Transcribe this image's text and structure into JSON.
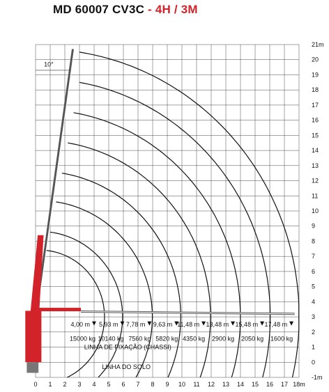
{
  "title": {
    "model": "MD 60007 CV3C",
    "separator": " - ",
    "configuration": "4H / 3M"
  },
  "chart_data": {
    "type": "load-chart",
    "x_unit": "m",
    "y_unit": "m",
    "xlim": [
      0,
      18
    ],
    "ylim": [
      -1,
      21
    ],
    "x_ticks": [
      "0",
      "1",
      "2",
      "3",
      "4",
      "5",
      "6",
      "7",
      "8",
      "9",
      "10",
      "11",
      "12",
      "13",
      "14",
      "15",
      "16",
      "17",
      "18m"
    ],
    "y_ticks": [
      "-1m",
      "0",
      "1",
      "2",
      "3",
      "4",
      "5",
      "6",
      "7",
      "8",
      "9",
      "10",
      "11",
      "12",
      "13",
      "14",
      "15",
      "16",
      "17",
      "18",
      "19",
      "20",
      "21m"
    ],
    "angle_label": "10°",
    "reach_arcs": [
      {
        "tip_x": 3.0,
        "tip_y": 20.5
      },
      {
        "tip_x": 3.0,
        "tip_y": 18.5
      },
      {
        "tip_x": 2.6,
        "tip_y": 16.5
      },
      {
        "tip_x": 2.2,
        "tip_y": 14.5
      },
      {
        "tip_x": 1.8,
        "tip_y": 12.5
      },
      {
        "tip_x": 1.4,
        "tip_y": 10.6
      },
      {
        "tip_x": 1.0,
        "tip_y": 8.6
      },
      {
        "tip_x": 0.6,
        "tip_y": 7.4
      }
    ],
    "load_points": [
      {
        "reach": "4,00 m",
        "reach_value": 4.0,
        "load": "15000 kg"
      },
      {
        "reach": "5,93 m",
        "reach_value": 5.93,
        "load": "10140 kg"
      },
      {
        "reach": "7,78 m",
        "reach_value": 7.78,
        "load": "7560 kg"
      },
      {
        "reach": "9,63 m",
        "reach_value": 9.63,
        "load": "5820 kg"
      },
      {
        "reach": "11,48 m",
        "reach_value": 11.48,
        "load": "4350 kg"
      },
      {
        "reach": "13,48 m",
        "reach_value": 13.48,
        "load": "2900 kg"
      },
      {
        "reach": "15,48 m",
        "reach_value": 15.48,
        "load": "2050 kg"
      },
      {
        "reach": "17,48 m",
        "reach_value": 17.48,
        "load": "1600 kg"
      }
    ],
    "fixing_line_label": "LINHA DE FIXAÇÃO (CHASSI)",
    "ground_line_label": "LINHA DO SOLO",
    "grid": true
  },
  "colors": {
    "grid": "#333333",
    "arc": "#111111",
    "crane_red": "#d2232a",
    "boom_outline": "#555555",
    "text": "#111111",
    "title_red": "#d2232a"
  }
}
